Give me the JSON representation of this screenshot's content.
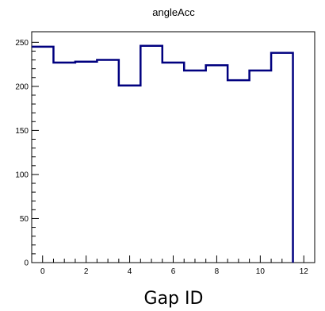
{
  "chart_data": {
    "type": "histogram",
    "title": "angleAcc",
    "xlabel": "Gap ID",
    "ylabel": "",
    "xlim": [
      -0.5,
      12.5
    ],
    "ylim": [
      0,
      262
    ],
    "x_ticks": [
      "0",
      "2",
      "4",
      "6",
      "8",
      "10",
      "12"
    ],
    "y_ticks": [
      "0",
      "50",
      "100",
      "150",
      "200",
      "250"
    ],
    "bins": [
      {
        "lo": -0.5,
        "hi": 0.5,
        "value": 245
      },
      {
        "lo": 0.5,
        "hi": 1.5,
        "value": 227
      },
      {
        "lo": 1.5,
        "hi": 2.5,
        "value": 228
      },
      {
        "lo": 2.5,
        "hi": 3.5,
        "value": 230
      },
      {
        "lo": 3.5,
        "hi": 4.5,
        "value": 201
      },
      {
        "lo": 4.5,
        "hi": 5.5,
        "value": 246
      },
      {
        "lo": 5.5,
        "hi": 6.5,
        "value": 227
      },
      {
        "lo": 6.5,
        "hi": 7.5,
        "value": 218
      },
      {
        "lo": 7.5,
        "hi": 8.5,
        "value": 224
      },
      {
        "lo": 8.5,
        "hi": 9.5,
        "value": 207
      },
      {
        "lo": 9.5,
        "hi": 10.5,
        "value": 218
      },
      {
        "lo": 10.5,
        "hi": 11.5,
        "value": 238
      }
    ],
    "line_color": "#00007f",
    "grid": false,
    "legend": "none"
  }
}
